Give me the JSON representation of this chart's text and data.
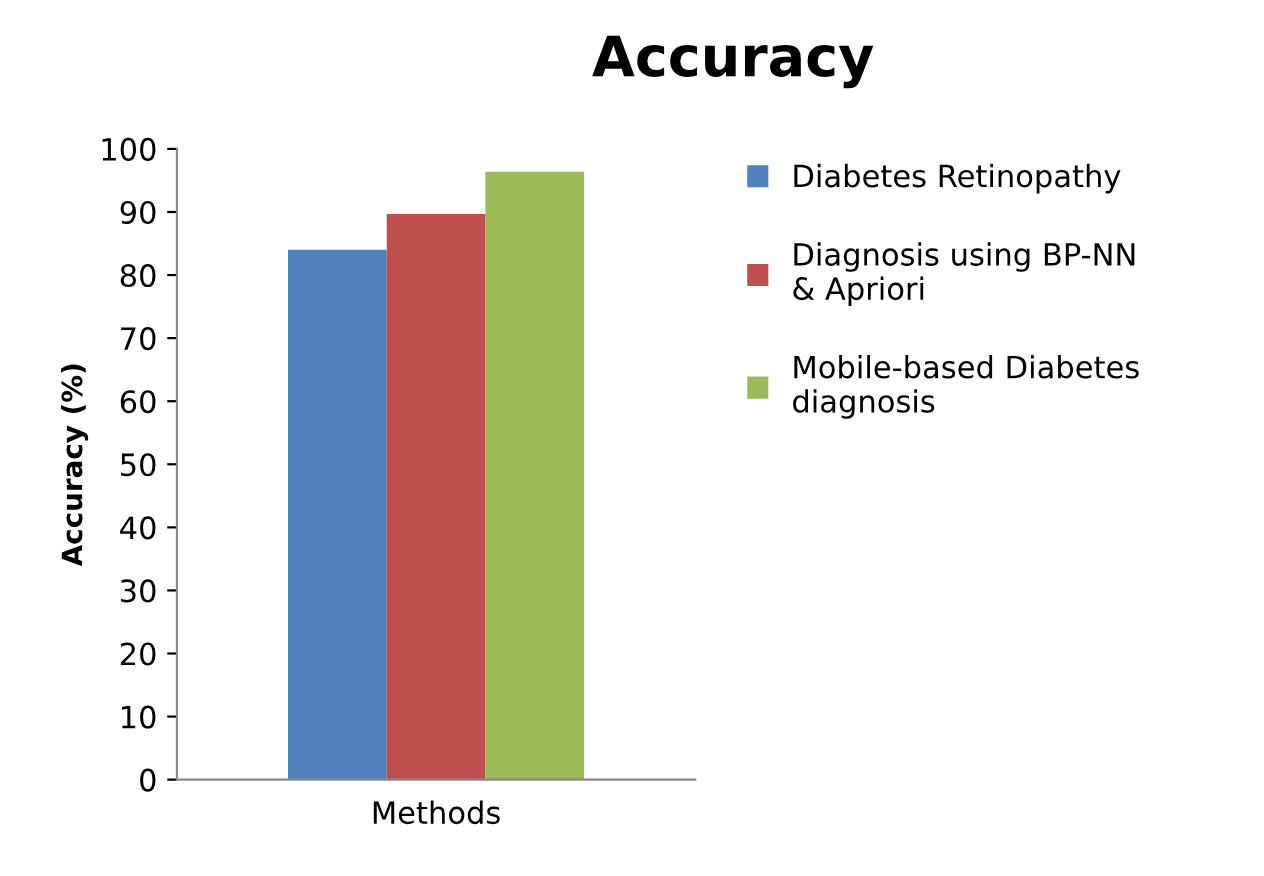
{
  "chart_data": {
    "type": "bar",
    "title": "Accuracy",
    "xlabel": "Methods",
    "ylabel": "Accuracy (%)",
    "categories": [
      null
    ],
    "series": [
      {
        "name": "Diabetes Retinopathy",
        "color": "#4f81bd",
        "values": [
          84
        ]
      },
      {
        "name": "Diagnosis using BP-NN\n& Apriori",
        "color": "#c0504d",
        "values": [
          89.7
        ]
      },
      {
        "name": "Mobile-based Diabetes\ndiagnosis",
        "color": "#9bbb59",
        "values": [
          96.4
        ]
      }
    ],
    "ylim": [
      0,
      100
    ],
    "yticks": [
      0,
      10,
      20,
      30,
      40,
      50,
      60,
      70,
      80,
      90,
      100
    ],
    "grid": false,
    "legend": "right"
  }
}
